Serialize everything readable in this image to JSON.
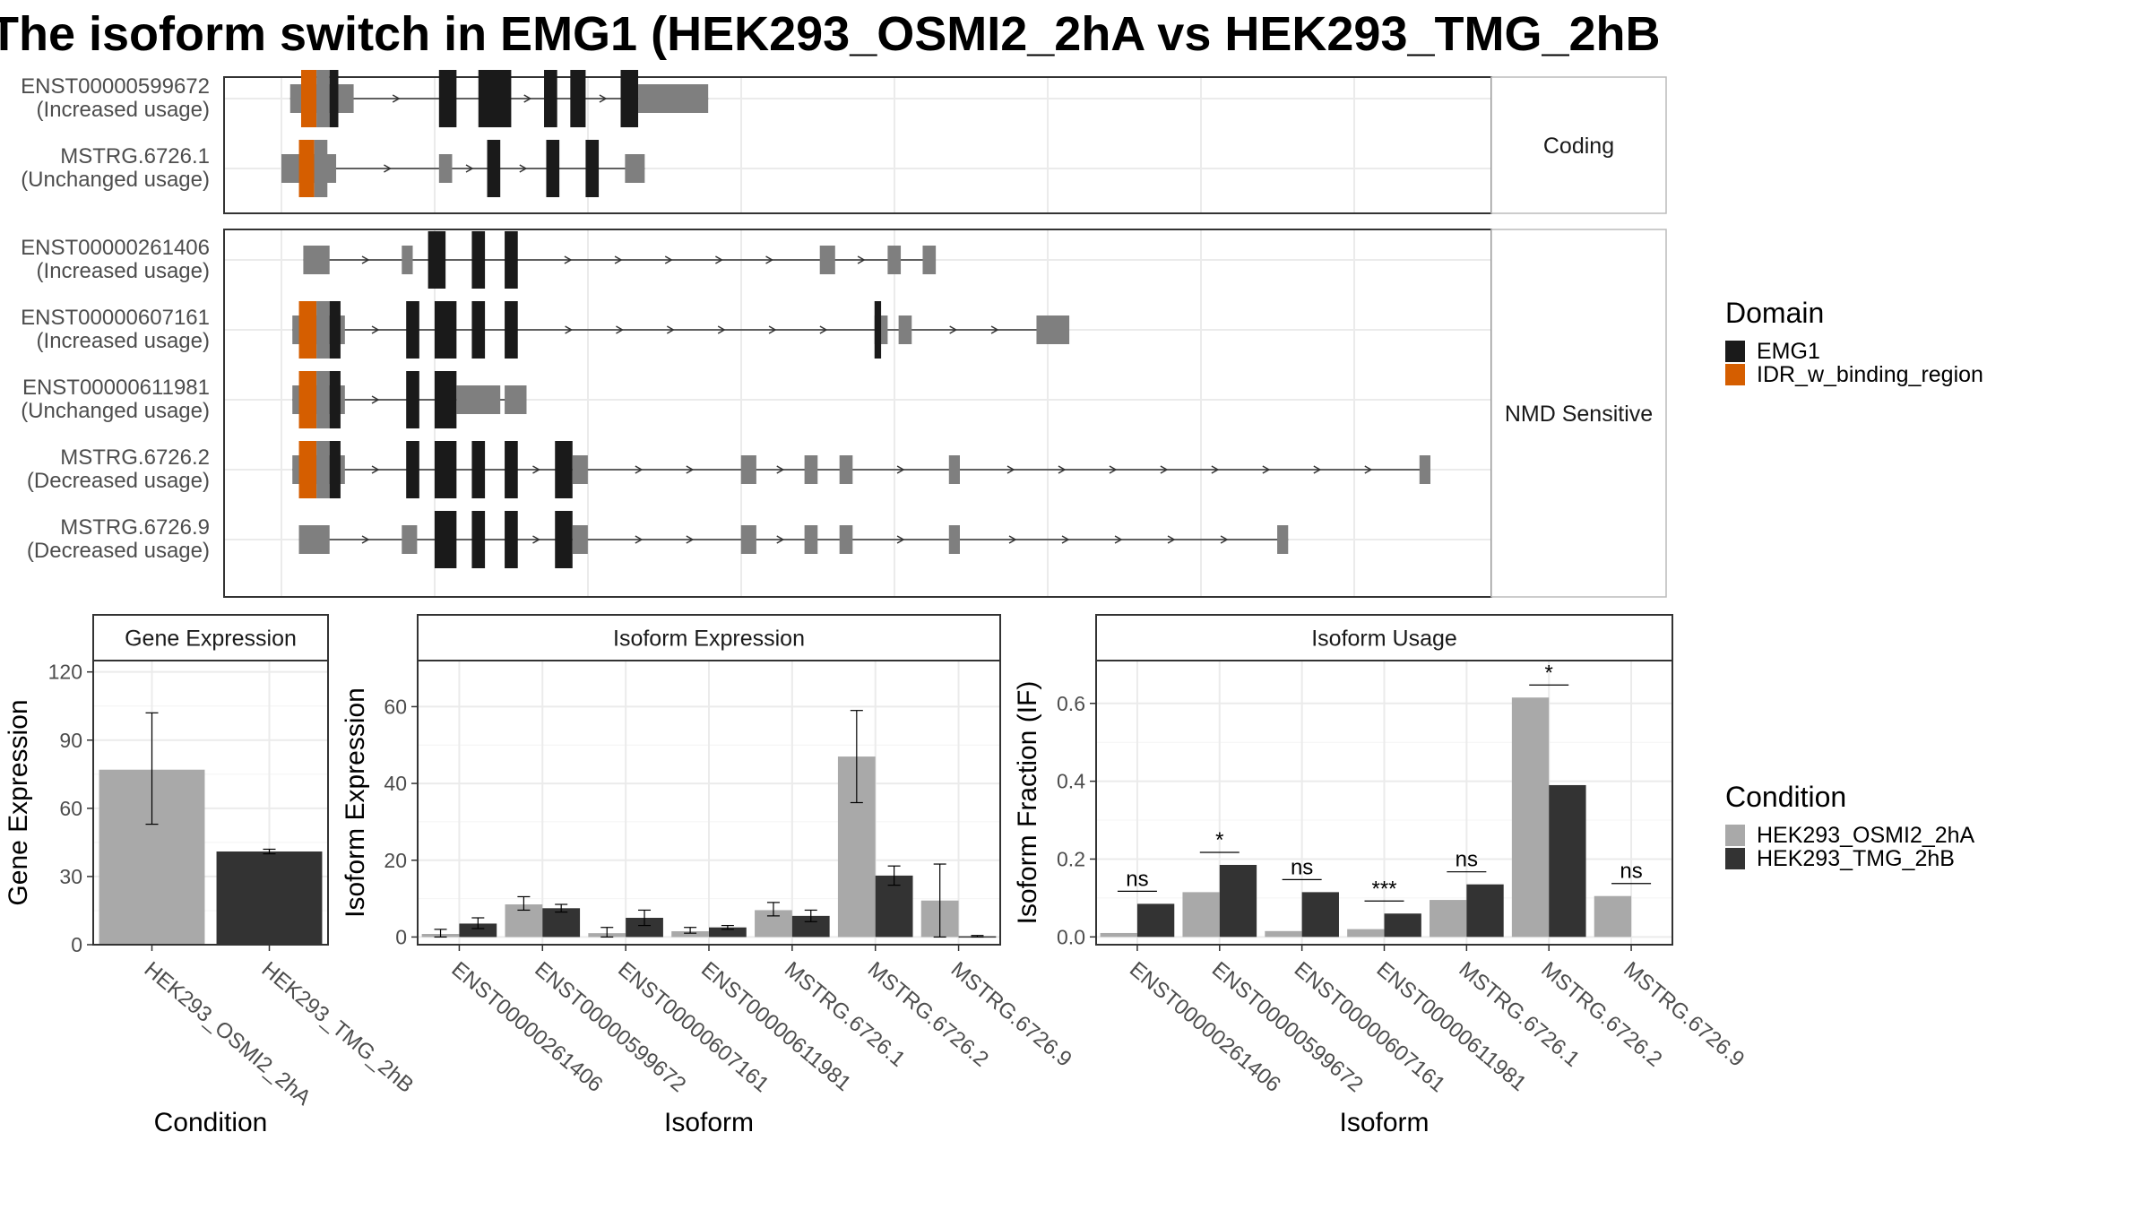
{
  "title": "The isoform switch in EMG1 (HEK293_OSMI2_2hA vs HEK293_TMG_2hB",
  "colors": {
    "exon_gray": "#7f7f7f",
    "domain_emg1": "#1a1a1a",
    "domain_idr": "#d55e00",
    "bar_light": "#a9a9a9",
    "bar_dark": "#333333",
    "grid": "#ebebeb",
    "intron": "#333333"
  },
  "structure": {
    "facets": [
      {
        "label": "Coding",
        "tracks": [
          {
            "id": "ENST00000599672",
            "status": "(Increased usage)",
            "intron_extent": [
              4,
              195
            ],
            "exons": [
              {
                "s": 4,
                "e": 33,
                "t": 3
              },
              {
                "s": 72,
                "e": 80,
                "t": 5
              },
              {
                "s": 90,
                "e": 105,
                "t": 5
              },
              {
                "s": 120,
                "e": 126,
                "t": 5
              },
              {
                "s": 132,
                "e": 139,
                "t": 5
              },
              {
                "s": 155,
                "e": 163,
                "t": 5
              },
              {
                "s": 163,
                "e": 195,
                "t": 3
              }
            ],
            "domains": [
              {
                "s": 9,
                "e": 16,
                "name": "IDR_w_binding_region"
              },
              {
                "s": 16,
                "e": 22,
                "name": "pad"
              },
              {
                "s": 22,
                "e": 26,
                "name": "EMG1"
              }
            ]
          },
          {
            "id": "MSTRG.6726.1",
            "status": "(Unchanged usage)",
            "intron_extent": [
              0,
              166
            ],
            "exons": [
              {
                "s": 0,
                "e": 25,
                "t": 3
              },
              {
                "s": 72,
                "e": 78,
                "t": 3
              },
              {
                "s": 94,
                "e": 100,
                "t": 5
              },
              {
                "s": 121,
                "e": 127,
                "t": 5
              },
              {
                "s": 139,
                "e": 145,
                "t": 5
              },
              {
                "s": 157,
                "e": 166,
                "t": 3
              }
            ],
            "domains": [
              {
                "s": 8,
                "e": 15,
                "name": "IDR_w_binding_region"
              },
              {
                "s": 15,
                "e": 21,
                "name": "pad"
              }
            ]
          }
        ]
      },
      {
        "label": "NMD Sensitive",
        "tracks": [
          {
            "id": "ENST00000261406",
            "status": "(Increased usage)",
            "intron_extent": [
              10,
              296
            ],
            "exons": [
              {
                "s": 10,
                "e": 22,
                "t": 3
              },
              {
                "s": 55,
                "e": 60,
                "t": 3
              },
              {
                "s": 67,
                "e": 75,
                "t": 5
              },
              {
                "s": 87,
                "e": 93,
                "t": 5
              },
              {
                "s": 102,
                "e": 108,
                "t": 5
              },
              {
                "s": 246,
                "e": 253,
                "t": 3
              },
              {
                "s": 277,
                "e": 283,
                "t": 3
              },
              {
                "s": 293,
                "e": 299,
                "t": 3
              }
            ],
            "domains": []
          },
          {
            "id": "ENST00000607161",
            "status": "(Increased usage)",
            "intron_extent": [
              5,
              355
            ],
            "exons": [
              {
                "s": 5,
                "e": 29,
                "t": 3
              },
              {
                "s": 57,
                "e": 63,
                "t": 5
              },
              {
                "s": 70,
                "e": 80,
                "t": 5
              },
              {
                "s": 87,
                "e": 93,
                "t": 5
              },
              {
                "s": 102,
                "e": 108,
                "t": 5
              },
              {
                "s": 271,
                "e": 277,
                "t": 3
              },
              {
                "s": 282,
                "e": 288,
                "t": 3
              },
              {
                "s": 345,
                "e": 360,
                "t": 3
              }
            ],
            "domains": [
              {
                "s": 8,
                "e": 16,
                "name": "IDR_w_binding_region"
              },
              {
                "s": 16,
                "e": 22,
                "name": "pad"
              },
              {
                "s": 22,
                "e": 27,
                "name": "EMG1"
              },
              {
                "s": 271,
                "e": 274,
                "name": "EMG1"
              }
            ]
          },
          {
            "id": "ENST00000611981",
            "status": "(Unchanged usage)",
            "intron_extent": [
              5,
              112
            ],
            "exons": [
              {
                "s": 5,
                "e": 29,
                "t": 3
              },
              {
                "s": 57,
                "e": 63,
                "t": 5
              },
              {
                "s": 70,
                "e": 80,
                "t": 5
              },
              {
                "s": 80,
                "e": 100,
                "t": 3
              },
              {
                "s": 102,
                "e": 112,
                "t": 3
              }
            ],
            "domains": [
              {
                "s": 8,
                "e": 16,
                "name": "IDR_w_binding_region"
              },
              {
                "s": 16,
                "e": 22,
                "name": "pad"
              },
              {
                "s": 22,
                "e": 27,
                "name": "EMG1"
              }
            ]
          },
          {
            "id": "MSTRG.6726.2",
            "status": "(Decreased usage)",
            "intron_extent": [
              5,
              525
            ],
            "exons": [
              {
                "s": 5,
                "e": 29,
                "t": 3
              },
              {
                "s": 57,
                "e": 63,
                "t": 5
              },
              {
                "s": 70,
                "e": 80,
                "t": 5
              },
              {
                "s": 87,
                "e": 93,
                "t": 5
              },
              {
                "s": 102,
                "e": 108,
                "t": 5
              },
              {
                "s": 125,
                "e": 133,
                "t": 5
              },
              {
                "s": 133,
                "e": 140,
                "t": 3
              },
              {
                "s": 210,
                "e": 217,
                "t": 3
              },
              {
                "s": 239,
                "e": 245,
                "t": 3
              },
              {
                "s": 255,
                "e": 261,
                "t": 3
              },
              {
                "s": 305,
                "e": 310,
                "t": 3
              },
              {
                "s": 520,
                "e": 525,
                "t": 3
              }
            ],
            "domains": [
              {
                "s": 8,
                "e": 16,
                "name": "IDR_w_binding_region"
              },
              {
                "s": 16,
                "e": 22,
                "name": "pad"
              },
              {
                "s": 22,
                "e": 27,
                "name": "EMG1"
              }
            ]
          },
          {
            "id": "MSTRG.6726.9",
            "status": "(Decreased usage)",
            "intron_extent": [
              8,
              460
            ],
            "exons": [
              {
                "s": 8,
                "e": 22,
                "t": 3
              },
              {
                "s": 55,
                "e": 62,
                "t": 3
              },
              {
                "s": 70,
                "e": 80,
                "t": 5
              },
              {
                "s": 87,
                "e": 93,
                "t": 5
              },
              {
                "s": 102,
                "e": 108,
                "t": 5
              },
              {
                "s": 125,
                "e": 133,
                "t": 5
              },
              {
                "s": 133,
                "e": 140,
                "t": 3
              },
              {
                "s": 210,
                "e": 217,
                "t": 3
              },
              {
                "s": 239,
                "e": 245,
                "t": 3
              },
              {
                "s": 255,
                "e": 261,
                "t": 3
              },
              {
                "s": 305,
                "e": 310,
                "t": 3
              },
              {
                "s": 455,
                "e": 460,
                "t": 3
              }
            ],
            "domains": []
          }
        ]
      }
    ]
  },
  "legend_domain": {
    "title": "Domain",
    "items": [
      {
        "label": "EMG1",
        "color": "#1a1a1a"
      },
      {
        "label": "IDR_w_binding_region",
        "color": "#d55e00"
      }
    ]
  },
  "legend_condition": {
    "title": "Condition",
    "items": [
      {
        "label": "HEK293_OSMI2_2hA",
        "color": "#a9a9a9"
      },
      {
        "label": "HEK293_TMG_2hB",
        "color": "#333333"
      }
    ]
  },
  "chart_data": [
    {
      "type": "bar",
      "title": "Gene Expression",
      "xlabel": "Condition",
      "ylabel": "Gene Expression",
      "ylim": [
        0,
        125
      ],
      "yticks": [
        0,
        30,
        60,
        90,
        120
      ],
      "categories": [
        "HEK293_OSMI2_2hA",
        "HEK293_TMG_2hB"
      ],
      "values": [
        77,
        41
      ],
      "errors": [
        [
          53,
          102
        ],
        [
          40,
          42
        ]
      ]
    },
    {
      "type": "bar",
      "title": "Isoform Expression",
      "xlabel": "Isoform",
      "ylabel": "Isoform Expression",
      "ylim": [
        -2,
        72
      ],
      "yticks": [
        0,
        20,
        40,
        60
      ],
      "categories": [
        "ENST00000261406",
        "ENST00000599672",
        "ENST00000607161",
        "ENST00000611981",
        "MSTRG.6726.1",
        "MSTRG.6726.2",
        "MSTRG.6726.9"
      ],
      "series": [
        {
          "name": "HEK293_OSMI2_2hA",
          "values": [
            0.8,
            8.5,
            1.0,
            1.5,
            7.0,
            47,
            9.5
          ],
          "errors": [
            [
              0,
              2
            ],
            [
              7,
              10.5
            ],
            [
              0,
              2.5
            ],
            [
              1,
              2.5
            ],
            [
              5.5,
              9
            ],
            [
              35,
              59
            ],
            [
              0,
              19
            ]
          ]
        },
        {
          "name": "HEK293_TMG_2hB",
          "values": [
            3.5,
            7.5,
            5.0,
            2.5,
            5.5,
            16,
            0.2
          ],
          "errors": [
            [
              2.2,
              5
            ],
            [
              6.5,
              8.5
            ],
            [
              3,
              7
            ],
            [
              2,
              3
            ],
            [
              4,
              7
            ],
            [
              13.5,
              18.5
            ],
            [
              0,
              0.4
            ]
          ]
        }
      ]
    },
    {
      "type": "bar",
      "title": "Isoform Usage",
      "xlabel": "Isoform",
      "ylabel": "Isoform Fraction (IF)",
      "ylim": [
        -0.02,
        0.71
      ],
      "yticks": [
        0.0,
        0.2,
        0.4,
        0.6
      ],
      "ytick_labels": [
        "0.0",
        "0.2",
        "0.4",
        "0.6"
      ],
      "categories": [
        "ENST00000261406",
        "ENST00000599672",
        "ENST00000607161",
        "ENST00000611981",
        "MSTRG.6726.1",
        "MSTRG.6726.2",
        "MSTRG.6726.9"
      ],
      "series": [
        {
          "name": "HEK293_OSMI2_2hA",
          "values": [
            0.01,
            0.115,
            0.015,
            0.02,
            0.095,
            0.615,
            0.105
          ]
        },
        {
          "name": "HEK293_TMG_2hB",
          "values": [
            0.085,
            0.185,
            0.115,
            0.06,
            0.135,
            0.39,
            null
          ]
        }
      ],
      "significance": [
        "ns",
        "*",
        "ns",
        "***",
        "ns",
        "*",
        "ns"
      ]
    }
  ]
}
